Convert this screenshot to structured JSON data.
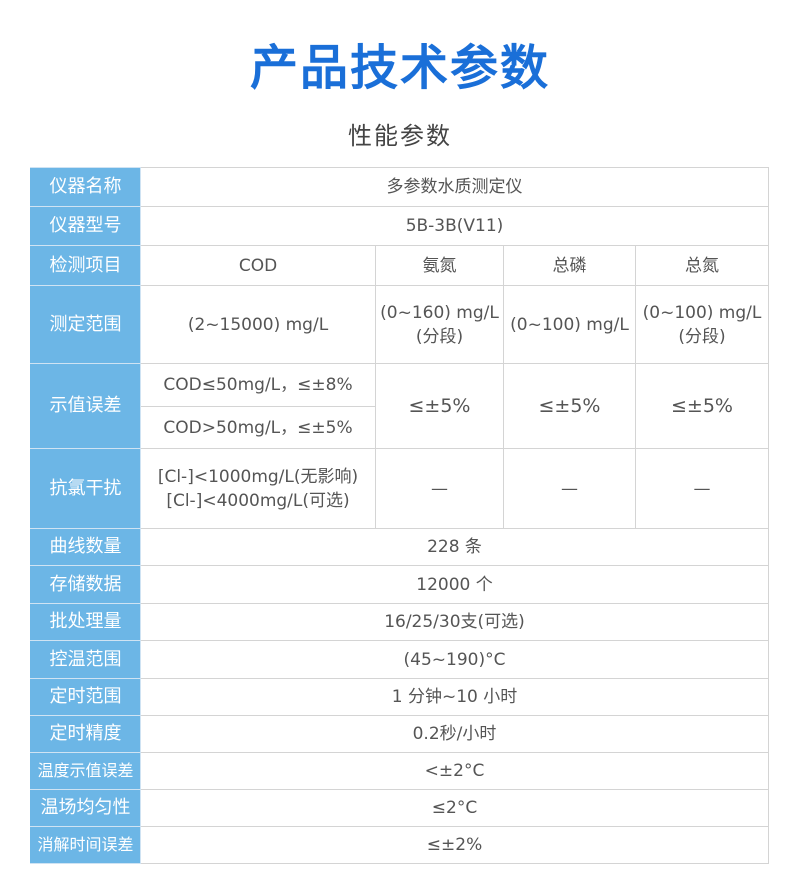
{
  "title": "产品技术参数",
  "subtitle": "性能参数",
  "colors": {
    "title": "#1a6fd8",
    "label_bg": "#6cb6e6"
  },
  "rows": {
    "name": {
      "label": "仪器名称",
      "value": "多参数水质测定仪"
    },
    "model": {
      "label": "仪器型号",
      "value": "5B-3B(V11)"
    },
    "items": {
      "label": "检测项目",
      "values": [
        "COD",
        "氨氮",
        "总磷",
        "总氮"
      ]
    },
    "range": {
      "label": "测定范围",
      "values": [
        "(2~15000) mg/L",
        "(0~160) mg/L",
        "(分段)",
        "(0~100) mg/L",
        "(0~100) mg/L",
        "(分段)"
      ]
    },
    "error": {
      "label": "示值误差",
      "cod_low": "COD≤50mg/L，≤±8%",
      "cod_high": "COD>50mg/L，≤±5%",
      "values": [
        "≤±5%",
        "≤±5%",
        "≤±5%"
      ]
    },
    "chlorine": {
      "label": "抗氯干扰",
      "line1": "[Cl-]<1000mg/L(无影响)",
      "line2": "[Cl-]<4000mg/L(可选)",
      "values": [
        "—",
        "—",
        "—"
      ]
    },
    "curves": {
      "label": "曲线数量",
      "value": "228 条"
    },
    "storage": {
      "label": "存储数据",
      "value": "12000 个"
    },
    "batch": {
      "label": "批处理量",
      "value": "16/25/30支(可选)"
    },
    "temp": {
      "label": "控温范围",
      "value": "(45~190)°C"
    },
    "timer": {
      "label": "定时范围",
      "value": "1 分钟~10 小时"
    },
    "timer_acc": {
      "label": "定时精度",
      "value": "0.2秒/小时"
    },
    "temp_err": {
      "label": "温度示值误差",
      "value": "<±2°C"
    },
    "temp_uni": {
      "label": "温场均匀性",
      "value": "≤2°C"
    },
    "digest_err": {
      "label": "消解时间误差",
      "value": "≤±2%"
    }
  }
}
